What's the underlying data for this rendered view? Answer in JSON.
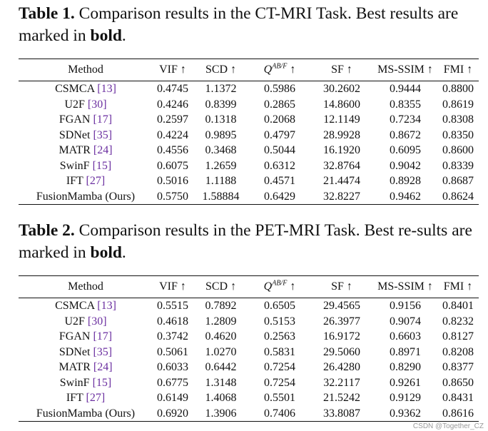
{
  "table1": {
    "caption_label": "Table 1.",
    "caption_text_1": " Comparison results in the CT-MRI Task. Best results are marked in ",
    "caption_bold": "bold",
    "caption_end": ".",
    "headers": {
      "method": "Method",
      "vif": "VIF ↑",
      "scd": "SCD ↑",
      "q_base": "Q",
      "q_sup": "AB/F",
      "q_arrow": " ↑",
      "sf": "SF ↑",
      "msssim": "MS-SSIM ↑",
      "fmi": "FMI ↑"
    },
    "rows": [
      {
        "name": "CSMCA",
        "ref": "[13]",
        "vif": "0.4745",
        "scd": "1.1372",
        "q": "0.5986",
        "sf": "30.2602",
        "msssim": "0.9444",
        "fmi": "0.8800"
      },
      {
        "name": "U2F",
        "ref": "[30]",
        "vif": "0.4246",
        "scd": "0.8399",
        "q": "0.2865",
        "sf": "14.8600",
        "msssim": "0.8355",
        "fmi": "0.8619"
      },
      {
        "name": "FGAN",
        "ref": "[17]",
        "vif": "0.2597",
        "scd": "0.1318",
        "q": "0.2068",
        "sf": "12.1149",
        "msssim": "0.7234",
        "fmi": "0.8308"
      },
      {
        "name": "SDNet",
        "ref": "[35]",
        "vif": "0.4224",
        "scd": "0.9895",
        "q": "0.4797",
        "sf": "28.9928",
        "msssim": "0.8672",
        "fmi": "0.8350"
      },
      {
        "name": "MATR",
        "ref": "[24]",
        "vif": "0.4556",
        "scd": "0.3468",
        "q": "0.5044",
        "sf": "16.1920",
        "msssim": "0.6095",
        "fmi": "0.8600"
      },
      {
        "name": "SwinF",
        "ref": "[15]",
        "vif": "0.6075",
        "scd": "1.2659",
        "q": "0.6312",
        "sf": "32.8764",
        "msssim": "0.9042",
        "fmi": "0.8339"
      },
      {
        "name": "IFT",
        "ref": "[27]",
        "vif": "0.5016",
        "scd": "1.1188",
        "q": "0.4571",
        "sf": "21.4474",
        "msssim": "0.8928",
        "fmi": "0.8687"
      },
      {
        "name": "FusionMamba (Ours)",
        "ref": "",
        "vif": "0.5750",
        "scd": "1.58884",
        "q": "0.6429",
        "sf": "32.8227",
        "msssim": "0.9462",
        "fmi": "0.8624"
      }
    ]
  },
  "table2": {
    "caption_label": "Table 2.",
    "caption_text_1": " Comparison results in the PET-MRI Task. Best re-sults are marked in ",
    "caption_bold": "bold",
    "caption_end": ".",
    "headers": {
      "method": "Method",
      "vif": "VIF ↑",
      "scd": "SCD ↑",
      "q_base": "Q",
      "q_sup": "AB/F",
      "q_arrow": " ↑",
      "sf": "SF ↑",
      "msssim": "MS-SSIM ↑",
      "fmi": "FMI ↑"
    },
    "rows": [
      {
        "name": "CSMCA",
        "ref": "[13]",
        "vif": "0.5515",
        "scd": "0.7892",
        "q": "0.6505",
        "sf": "29.4565",
        "msssim": "0.9156",
        "fmi": "0.8401"
      },
      {
        "name": "U2F",
        "ref": "[30]",
        "vif": "0.4618",
        "scd": "1.2809",
        "q": "0.5153",
        "sf": "26.3977",
        "msssim": "0.9074",
        "fmi": "0.8232"
      },
      {
        "name": "FGAN",
        "ref": "[17]",
        "vif": "0.3742",
        "scd": "0.4620",
        "q": "0.2563",
        "sf": "16.9172",
        "msssim": "0.6603",
        "fmi": "0.8127"
      },
      {
        "name": "SDNet",
        "ref": "[35]",
        "vif": "0.5061",
        "scd": "1.0270",
        "q": "0.5831",
        "sf": "29.5060",
        "msssim": "0.8971",
        "fmi": "0.8208"
      },
      {
        "name": "MATR",
        "ref": "[24]",
        "vif": "0.6033",
        "scd": "0.6442",
        "q": "0.7254",
        "sf": "26.4280",
        "msssim": "0.8290",
        "fmi": "0.8377"
      },
      {
        "name": "SwinF",
        "ref": "[15]",
        "vif": "0.6775",
        "scd": "1.3148",
        "q": "0.7254",
        "sf": "32.2117",
        "msssim": "0.9261",
        "fmi": "0.8650"
      },
      {
        "name": "IFT",
        "ref": "[27]",
        "vif": "0.6149",
        "scd": "1.4068",
        "q": "0.5501",
        "sf": "21.5242",
        "msssim": "0.9129",
        "fmi": "0.8431"
      },
      {
        "name": "FusionMamba (Ours)",
        "ref": "",
        "vif": "0.6920",
        "scd": "1.3906",
        "q": "0.7406",
        "sf": "33.8087",
        "msssim": "0.9362",
        "fmi": "0.8616"
      }
    ]
  },
  "watermark": "CSDN @Together_CZ"
}
